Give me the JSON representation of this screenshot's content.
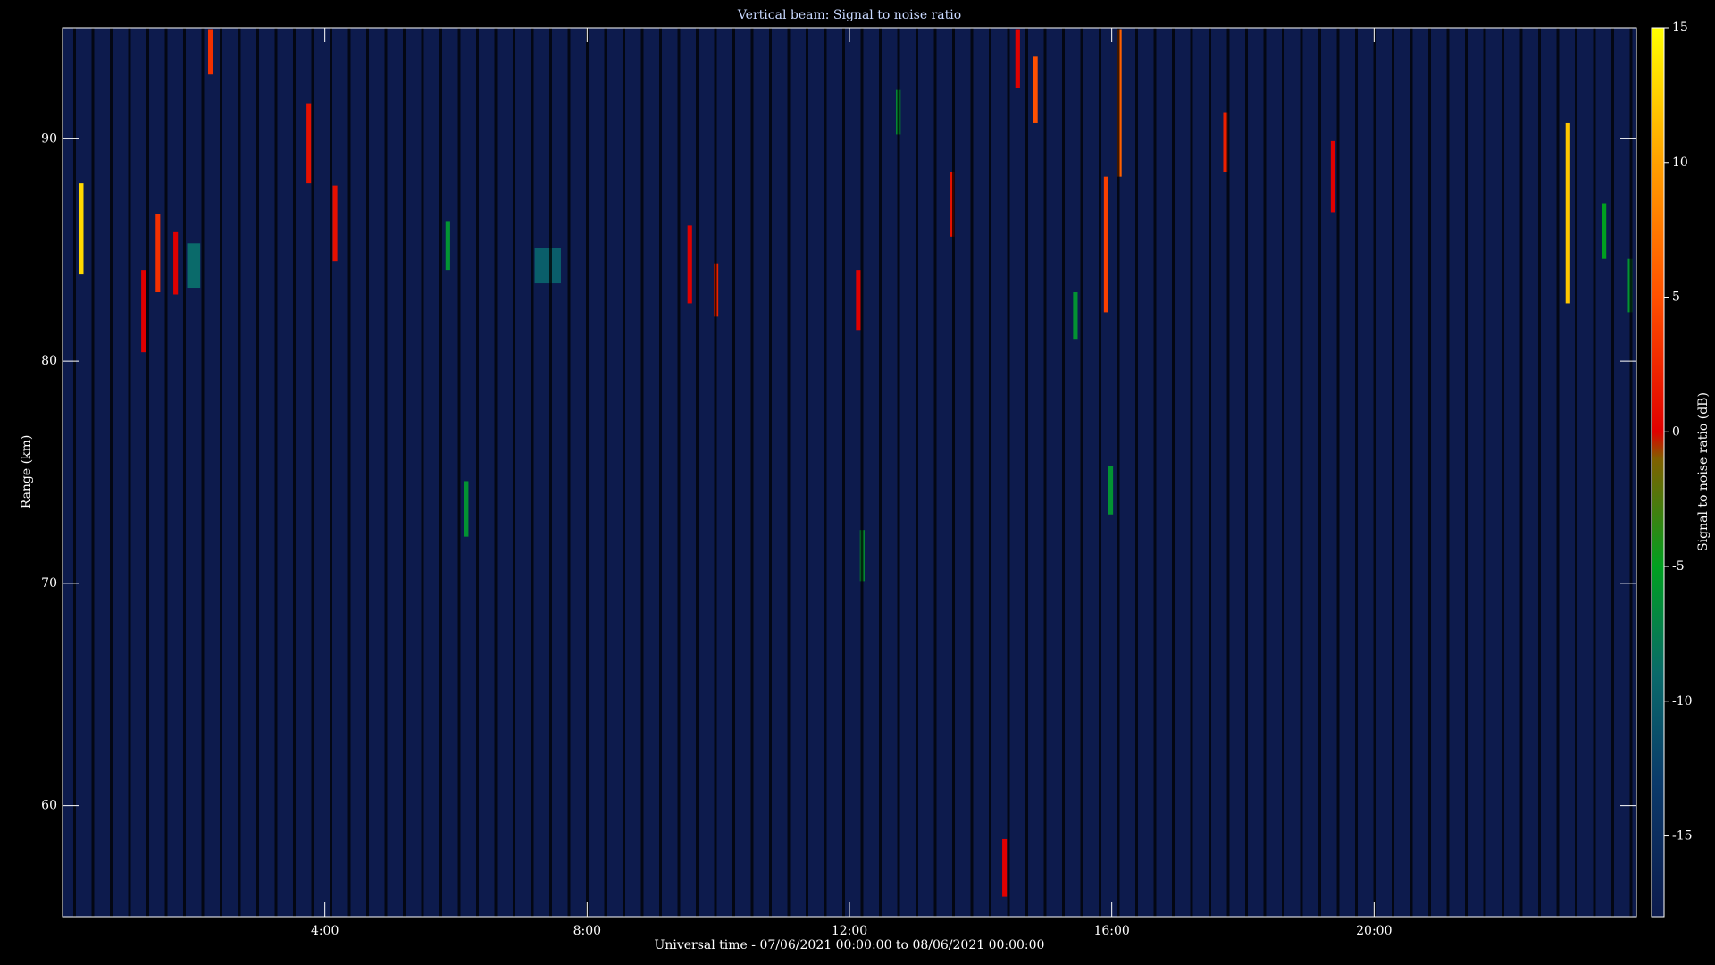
{
  "chart_data": {
    "type": "heatmap",
    "title": "Vertical beam: Signal to noise ratio",
    "x_label": "Universal time - 07/06/2021 00:00:00 to 08/06/2021 00:00:00",
    "y_label": "Range (km)",
    "colorbar_label": "Signal to noise ratio (dB)",
    "xlim": [
      0,
      24
    ],
    "xticks": [
      {
        "value": 4,
        "label": "4:00"
      },
      {
        "value": 8,
        "label": "8:00"
      },
      {
        "value": 12,
        "label": "12:00"
      },
      {
        "value": 16,
        "label": "16:00"
      },
      {
        "value": 20,
        "label": "20:00"
      }
    ],
    "ylim": [
      55,
      95
    ],
    "yticks": [
      60,
      70,
      80,
      90
    ],
    "clim": [
      -18,
      15
    ],
    "cticks": [
      -15,
      -10,
      -5,
      0,
      5,
      10,
      15
    ],
    "background_color": "#0d1b4d",
    "colormap": [
      {
        "value": -18,
        "color": "#0d1b4d"
      },
      {
        "value": -13,
        "color": "#0b3a6a"
      },
      {
        "value": -9,
        "color": "#0a6a6a"
      },
      {
        "value": -5,
        "color": "#00a020"
      },
      {
        "value": -1,
        "color": "#806000"
      },
      {
        "value": 0,
        "color": "#e00000"
      },
      {
        "value": 5,
        "color": "#ff5000"
      },
      {
        "value": 10,
        "color": "#ffa000"
      },
      {
        "value": 15,
        "color": "#ffff00"
      }
    ],
    "echoes": [
      {
        "t0": 0.25,
        "t1": 0.32,
        "r0": 83.9,
        "r1": 88.0,
        "snr": 13
      },
      {
        "t0": 1.2,
        "t1": 1.27,
        "r0": 80.4,
        "r1": 84.1,
        "snr": 0
      },
      {
        "t0": 1.42,
        "t1": 1.49,
        "r0": 83.1,
        "r1": 86.6,
        "snr": 3
      },
      {
        "t0": 1.69,
        "t1": 1.76,
        "r0": 83.0,
        "r1": 85.8,
        "snr": 0
      },
      {
        "t0": 1.9,
        "t1": 2.1,
        "r0": 83.3,
        "r1": 85.3,
        "snr": -9
      },
      {
        "t0": 2.22,
        "t1": 2.29,
        "r0": 92.9,
        "r1": 94.9,
        "snr": 3
      },
      {
        "t0": 3.72,
        "t1": 3.79,
        "r0": 88.0,
        "r1": 91.6,
        "snr": 1
      },
      {
        "t0": 4.12,
        "t1": 4.19,
        "r0": 84.5,
        "r1": 87.9,
        "snr": 1
      },
      {
        "t0": 5.84,
        "t1": 5.91,
        "r0": 84.1,
        "r1": 86.3,
        "snr": -6
      },
      {
        "t0": 6.12,
        "t1": 6.19,
        "r0": 72.1,
        "r1": 74.6,
        "snr": -6
      },
      {
        "t0": 7.2,
        "t1": 7.6,
        "r0": 83.5,
        "r1": 85.1,
        "snr": -10
      },
      {
        "t0": 9.53,
        "t1": 9.6,
        "r0": 82.6,
        "r1": 86.1,
        "snr": 0
      },
      {
        "t0": 9.93,
        "t1": 10.0,
        "r0": 82.0,
        "r1": 84.4,
        "snr": 2
      },
      {
        "t0": 12.1,
        "t1": 12.17,
        "r0": 81.4,
        "r1": 84.1,
        "snr": 0
      },
      {
        "t0": 12.16,
        "t1": 12.23,
        "r0": 70.1,
        "r1": 72.4,
        "snr": -6
      },
      {
        "t0": 12.71,
        "t1": 12.78,
        "r0": 90.2,
        "r1": 92.2,
        "snr": -6
      },
      {
        "t0": 13.53,
        "t1": 13.6,
        "r0": 85.6,
        "r1": 88.5,
        "snr": 1
      },
      {
        "t0": 14.33,
        "t1": 14.4,
        "r0": 55.9,
        "r1": 58.5,
        "snr": 0
      },
      {
        "t0": 14.53,
        "t1": 14.6,
        "r0": 92.3,
        "r1": 94.9,
        "snr": 0
      },
      {
        "t0": 14.8,
        "t1": 14.87,
        "r0": 90.7,
        "r1": 93.7,
        "snr": 5
      },
      {
        "t0": 15.41,
        "t1": 15.48,
        "r0": 81.0,
        "r1": 83.1,
        "snr": -6
      },
      {
        "t0": 15.88,
        "t1": 15.95,
        "r0": 82.2,
        "r1": 88.3,
        "snr": 4
      },
      {
        "t0": 15.95,
        "t1": 16.02,
        "r0": 73.1,
        "r1": 75.3,
        "snr": -6
      },
      {
        "t0": 16.08,
        "t1": 16.15,
        "r0": 88.3,
        "r1": 94.9,
        "snr": 6
      },
      {
        "t0": 17.7,
        "t1": 17.77,
        "r0": 88.5,
        "r1": 91.2,
        "snr": 2
      },
      {
        "t0": 19.34,
        "t1": 19.41,
        "r0": 86.7,
        "r1": 89.9,
        "snr": 0
      },
      {
        "t0": 22.92,
        "t1": 22.99,
        "r0": 82.6,
        "r1": 90.7,
        "snr": 12
      },
      {
        "t0": 23.47,
        "t1": 23.54,
        "r0": 84.6,
        "r1": 87.1,
        "snr": -5
      },
      {
        "t0": 23.87,
        "t1": 23.94,
        "r0": 82.2,
        "r1": 84.6,
        "snr": -6
      }
    ]
  }
}
